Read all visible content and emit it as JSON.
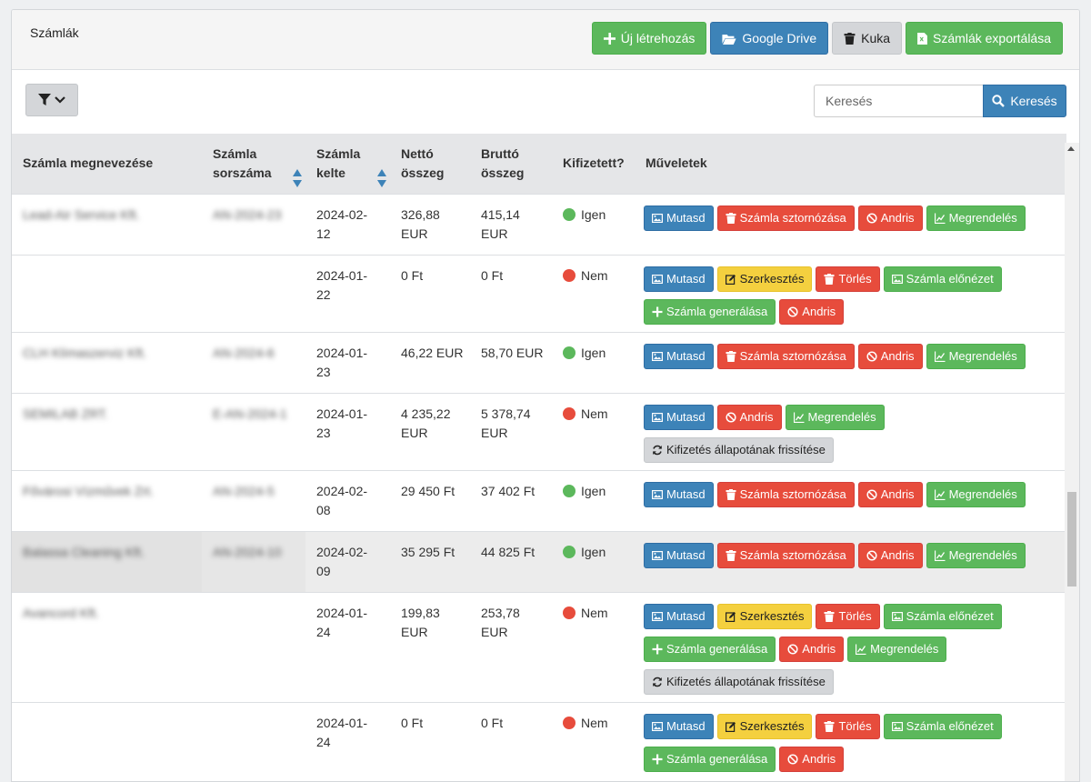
{
  "header": {
    "title": "Számlák",
    "buttons": {
      "create": "Új létrehozás",
      "drive": "Google Drive",
      "trash": "Kuka",
      "export": "Számlák exportálása"
    }
  },
  "search": {
    "placeholder": "Keresés",
    "button": "Keresés"
  },
  "table": {
    "columns": [
      "Számla megnevezése",
      "Számla sorszáma",
      "Számla kelte",
      "Nettó összeg",
      "Bruttó összeg",
      "Kifizetett?",
      "Műveletek"
    ],
    "rows": [
      {
        "name": "Lead-Air Service Kft.",
        "number": "AN-2024-23",
        "date": "2024-02-12",
        "net": "326,88 EUR",
        "gross": "415,14 EUR",
        "paid": "Igen"
      },
      {
        "name": "",
        "number": "",
        "date": "2024-01-22",
        "net": "0 Ft",
        "gross": "0 Ft",
        "paid": "Nem"
      },
      {
        "name": "CLH Klímaszerviz Kft.",
        "number": "AN-2024-6",
        "date": "2024-01-23",
        "net": "46,22 EUR",
        "gross": "58,70 EUR",
        "paid": "Igen"
      },
      {
        "name": "SEMILAB ZRT.",
        "number": "E-AN-2024-1",
        "date": "2024-01-23",
        "net": "4 235,22 EUR",
        "gross": "5 378,74 EUR",
        "paid": "Nem"
      },
      {
        "name": "Fővárosi Vízművek Zrt.",
        "number": "AN-2024-5",
        "date": "2024-02-08",
        "net": "29 450 Ft",
        "gross": "37 402 Ft",
        "paid": "Igen"
      },
      {
        "name": "Balassa Cleaning Kft.",
        "number": "AN-2024-10",
        "date": "2024-02-09",
        "net": "35 295 Ft",
        "gross": "44 825 Ft",
        "paid": "Igen"
      },
      {
        "name": "Avancord Kft.",
        "number": "",
        "date": "2024-01-24",
        "net": "199,83 EUR",
        "gross": "253,78 EUR",
        "paid": "Nem"
      },
      {
        "name": "",
        "number": "",
        "date": "2024-01-24",
        "net": "0 Ft",
        "gross": "0 Ft",
        "paid": "Nem"
      }
    ]
  },
  "actions": {
    "show": "Mutasd",
    "storno": "Számla sztornózása",
    "andris": "Andris",
    "order": "Megrendelés",
    "edit": "Szerkesztés",
    "delete": "Törlés",
    "preview": "Számla előnézet",
    "generate": "Számla generálása",
    "refresh": "Kifizetés állapotának frissítése"
  },
  "colors": {
    "primary": "#3d83b8",
    "success": "#5cb85c",
    "danger": "#e74c3c",
    "warning": "#f4d03f",
    "default": "#d4d6d9"
  }
}
